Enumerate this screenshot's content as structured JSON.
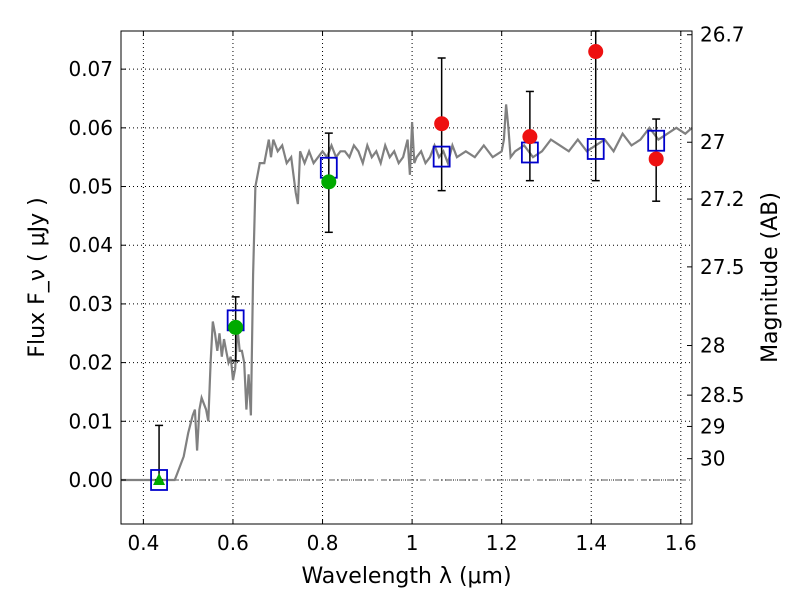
{
  "chart_data": {
    "type": "scatter",
    "xlabel": "Wavelength  λ (μm)",
    "ylabel": "Flux  F_ν  ( μJy )",
    "y2label": "Magnitude (AB)",
    "xlim": [
      0.35,
      1.625
    ],
    "ylim": [
      -0.0075,
      0.0765
    ],
    "grid": true,
    "x_ticks": [
      {
        "value": 0.4,
        "label": "0.4"
      },
      {
        "value": 0.6,
        "label": "0.6"
      },
      {
        "value": 0.8,
        "label": "0.8"
      },
      {
        "value": 1.0,
        "label": "1"
      },
      {
        "value": 1.2,
        "label": "1.2"
      },
      {
        "value": 1.4,
        "label": "1.4"
      },
      {
        "value": 1.6,
        "label": "1.6"
      }
    ],
    "y_ticks": [
      {
        "value": 0.0,
        "label": "0.00"
      },
      {
        "value": 0.01,
        "label": "0.01"
      },
      {
        "value": 0.02,
        "label": "0.02"
      },
      {
        "value": 0.03,
        "label": "0.03"
      },
      {
        "value": 0.04,
        "label": "0.04"
      },
      {
        "value": 0.05,
        "label": "0.05"
      },
      {
        "value": 0.06,
        "label": "0.06"
      },
      {
        "value": 0.07,
        "label": "0.07"
      }
    ],
    "mag_ticks": [
      {
        "value": 26.7,
        "label": "26.7"
      },
      {
        "value": 27.0,
        "label": "27"
      },
      {
        "value": 27.2,
        "label": "27.2"
      },
      {
        "value": 27.5,
        "label": "27.5"
      },
      {
        "value": 28.0,
        "label": "28"
      },
      {
        "value": 28.5,
        "label": "28.5"
      },
      {
        "value": 29.0,
        "label": "29"
      },
      {
        "value": 30.0,
        "label": "30"
      }
    ],
    "colors": {
      "spectrum": "#808080",
      "model_box": "#0000cc",
      "green_point": "#00aa00",
      "red_point": "#ee1111",
      "error_bar": "#000000"
    },
    "spectrum": {
      "x": [
        0.35,
        0.47,
        0.475,
        0.49,
        0.5,
        0.51,
        0.515,
        0.52,
        0.525,
        0.53,
        0.54,
        0.545,
        0.55,
        0.555,
        0.56,
        0.565,
        0.57,
        0.575,
        0.58,
        0.585,
        0.59,
        0.595,
        0.6,
        0.605,
        0.61,
        0.615,
        0.62,
        0.625,
        0.63,
        0.635,
        0.64,
        0.645,
        0.65,
        0.66,
        0.67,
        0.68,
        0.685,
        0.69,
        0.7,
        0.71,
        0.72,
        0.73,
        0.74,
        0.745,
        0.75,
        0.76,
        0.77,
        0.78,
        0.79,
        0.8,
        0.81,
        0.82,
        0.83,
        0.84,
        0.85,
        0.86,
        0.87,
        0.88,
        0.89,
        0.9,
        0.91,
        0.92,
        0.93,
        0.94,
        0.95,
        0.96,
        0.97,
        0.98,
        0.99,
        0.995,
        1.0,
        1.005,
        1.01,
        1.02,
        1.03,
        1.04,
        1.05,
        1.06,
        1.07,
        1.08,
        1.09,
        1.1,
        1.12,
        1.14,
        1.16,
        1.18,
        1.2,
        1.205,
        1.21,
        1.215,
        1.22,
        1.23,
        1.25,
        1.27,
        1.29,
        1.31,
        1.33,
        1.35,
        1.37,
        1.39,
        1.41,
        1.43,
        1.45,
        1.47,
        1.49,
        1.51,
        1.53,
        1.55,
        1.57,
        1.59,
        1.61,
        1.625
      ],
      "y": [
        0.0,
        0.0,
        0.001,
        0.004,
        0.008,
        0.011,
        0.012,
        0.005,
        0.012,
        0.014,
        0.012,
        0.01,
        0.02,
        0.027,
        0.025,
        0.022,
        0.025,
        0.021,
        0.024,
        0.022,
        0.02,
        0.021,
        0.017,
        0.019,
        0.026,
        0.022,
        0.022,
        0.02,
        0.012,
        0.018,
        0.011,
        0.035,
        0.05,
        0.054,
        0.054,
        0.058,
        0.055,
        0.058,
        0.056,
        0.057,
        0.054,
        0.055,
        0.049,
        0.047,
        0.056,
        0.054,
        0.056,
        0.054,
        0.055,
        0.056,
        0.055,
        0.057,
        0.055,
        0.056,
        0.056,
        0.055,
        0.057,
        0.056,
        0.054,
        0.057,
        0.055,
        0.056,
        0.054,
        0.057,
        0.055,
        0.056,
        0.054,
        0.055,
        0.058,
        0.052,
        0.061,
        0.054,
        0.055,
        0.056,
        0.054,
        0.055,
        0.057,
        0.055,
        0.056,
        0.054,
        0.057,
        0.055,
        0.056,
        0.055,
        0.057,
        0.055,
        0.056,
        0.058,
        0.064,
        0.06,
        0.055,
        0.056,
        0.057,
        0.055,
        0.056,
        0.058,
        0.057,
        0.056,
        0.058,
        0.056,
        0.057,
        0.058,
        0.056,
        0.059,
        0.057,
        0.058,
        0.06,
        0.058,
        0.059,
        0.06,
        0.059,
        0.06
      ]
    },
    "model_boxes": [
      {
        "x": 0.435,
        "y": 0.0
      },
      {
        "x": 0.606,
        "y": 0.0272
      },
      {
        "x": 0.814,
        "y": 0.0532
      },
      {
        "x": 1.066,
        "y": 0.0551
      },
      {
        "x": 1.263,
        "y": 0.0558
      },
      {
        "x": 1.41,
        "y": 0.0564
      },
      {
        "x": 1.545,
        "y": 0.0578
      }
    ],
    "error_bars": [
      {
        "x": 0.435,
        "low": 0.0,
        "high": 0.0093
      },
      {
        "x": 0.606,
        "low": 0.0203,
        "high": 0.0312
      },
      {
        "x": 0.814,
        "low": 0.0422,
        "high": 0.0591
      },
      {
        "x": 1.066,
        "low": 0.0493,
        "high": 0.0719
      },
      {
        "x": 1.263,
        "low": 0.051,
        "high": 0.0662
      },
      {
        "x": 1.41,
        "low": 0.051,
        "high": 0.0765
      },
      {
        "x": 1.545,
        "low": 0.0475,
        "high": 0.0615
      }
    ],
    "points": [
      {
        "x": 0.435,
        "y": 0.0,
        "marker": "triangle",
        "color": "green"
      },
      {
        "x": 0.606,
        "y": 0.026,
        "marker": "circle",
        "color": "green"
      },
      {
        "x": 0.814,
        "y": 0.0508,
        "marker": "circle",
        "color": "green"
      },
      {
        "x": 1.066,
        "y": 0.0607,
        "marker": "circle",
        "color": "red"
      },
      {
        "x": 1.263,
        "y": 0.0585,
        "marker": "circle",
        "color": "red"
      },
      {
        "x": 1.41,
        "y": 0.073,
        "marker": "circle",
        "color": "red"
      },
      {
        "x": 1.545,
        "y": 0.0547,
        "marker": "circle",
        "color": "red"
      }
    ]
  }
}
